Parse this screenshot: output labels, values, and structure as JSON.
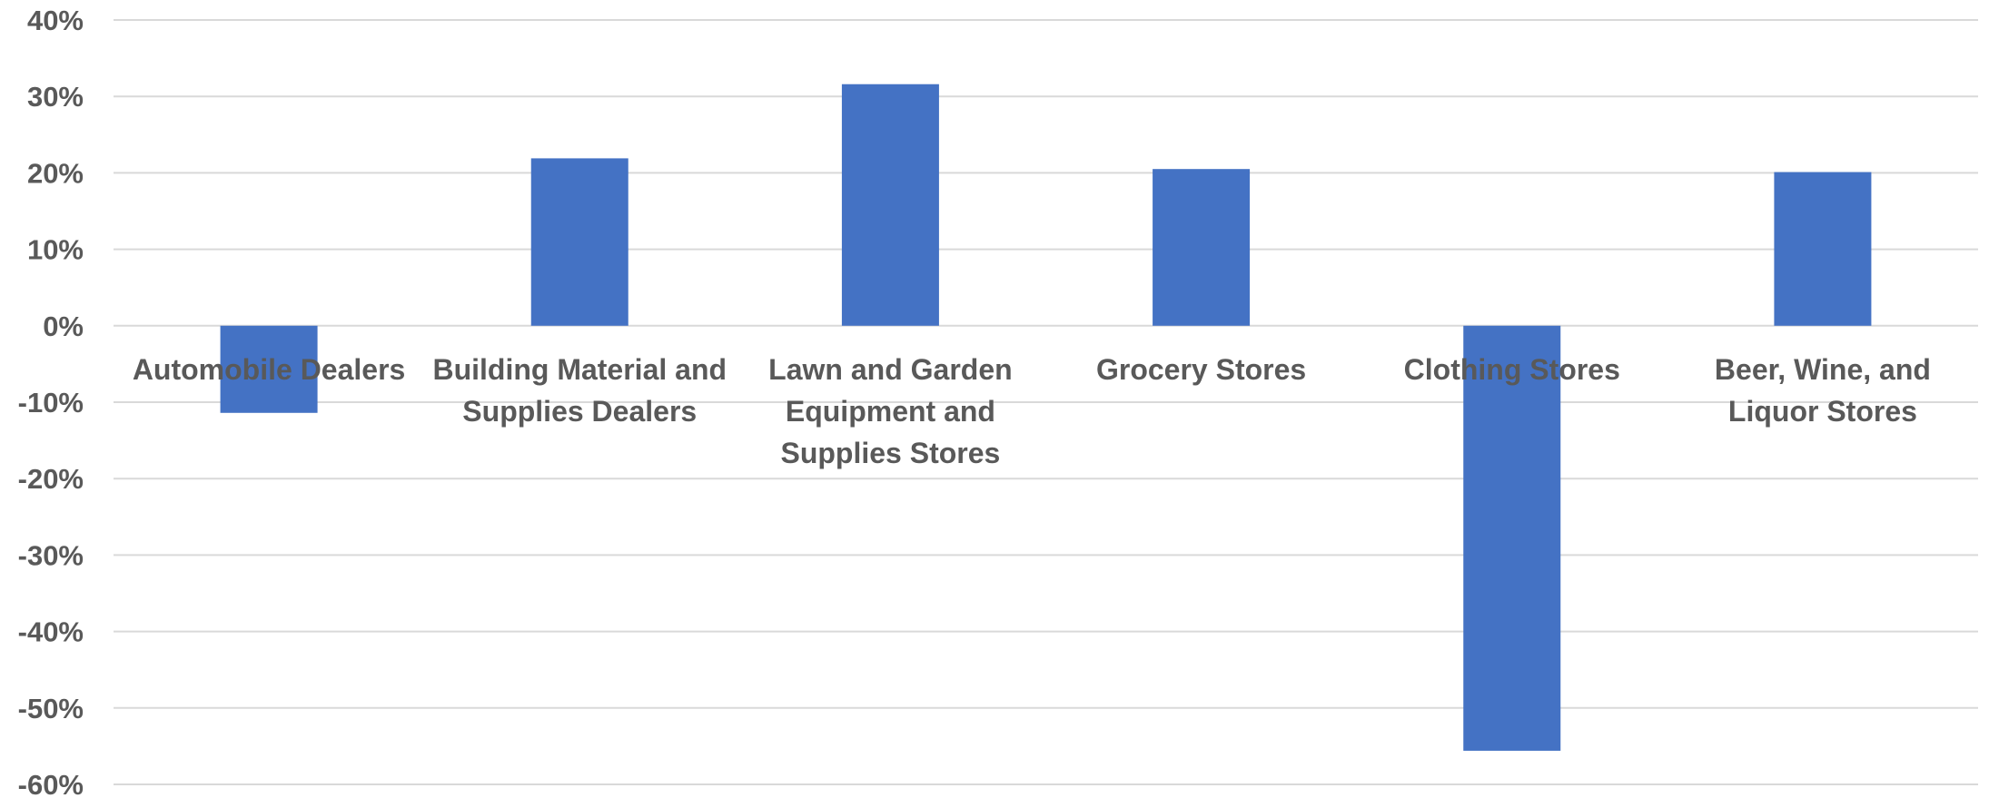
{
  "colors": {
    "bar": "#4472C4",
    "grid": "#D9D9D9",
    "text": "#595959",
    "background": "#FFFFFF"
  },
  "chart_data": {
    "type": "bar",
    "title": "",
    "xlabel": "",
    "ylabel": "",
    "ylim": [
      -60,
      40
    ],
    "y_ticks": [
      40,
      30,
      20,
      10,
      0,
      -10,
      -20,
      -30,
      -40,
      -50,
      -60
    ],
    "y_tick_labels": [
      "40%",
      "30%",
      "20%",
      "10%",
      "0%",
      "-10%",
      "-20%",
      "-30%",
      "-40%",
      "-50%",
      "-60%"
    ],
    "grid": true,
    "legend": "none",
    "categories": [
      [
        "Automobile Dealers"
      ],
      [
        "Building Material and",
        "Supplies Dealers"
      ],
      [
        "Lawn and Garden",
        "Equipment and",
        "Supplies Stores"
      ],
      [
        "Grocery Stores"
      ],
      [
        "Clothing Stores"
      ],
      [
        "Beer, Wine, and",
        "Liquor Stores"
      ]
    ],
    "values": [
      -11.4,
      21.9,
      31.6,
      20.5,
      -55.6,
      20.1
    ]
  }
}
